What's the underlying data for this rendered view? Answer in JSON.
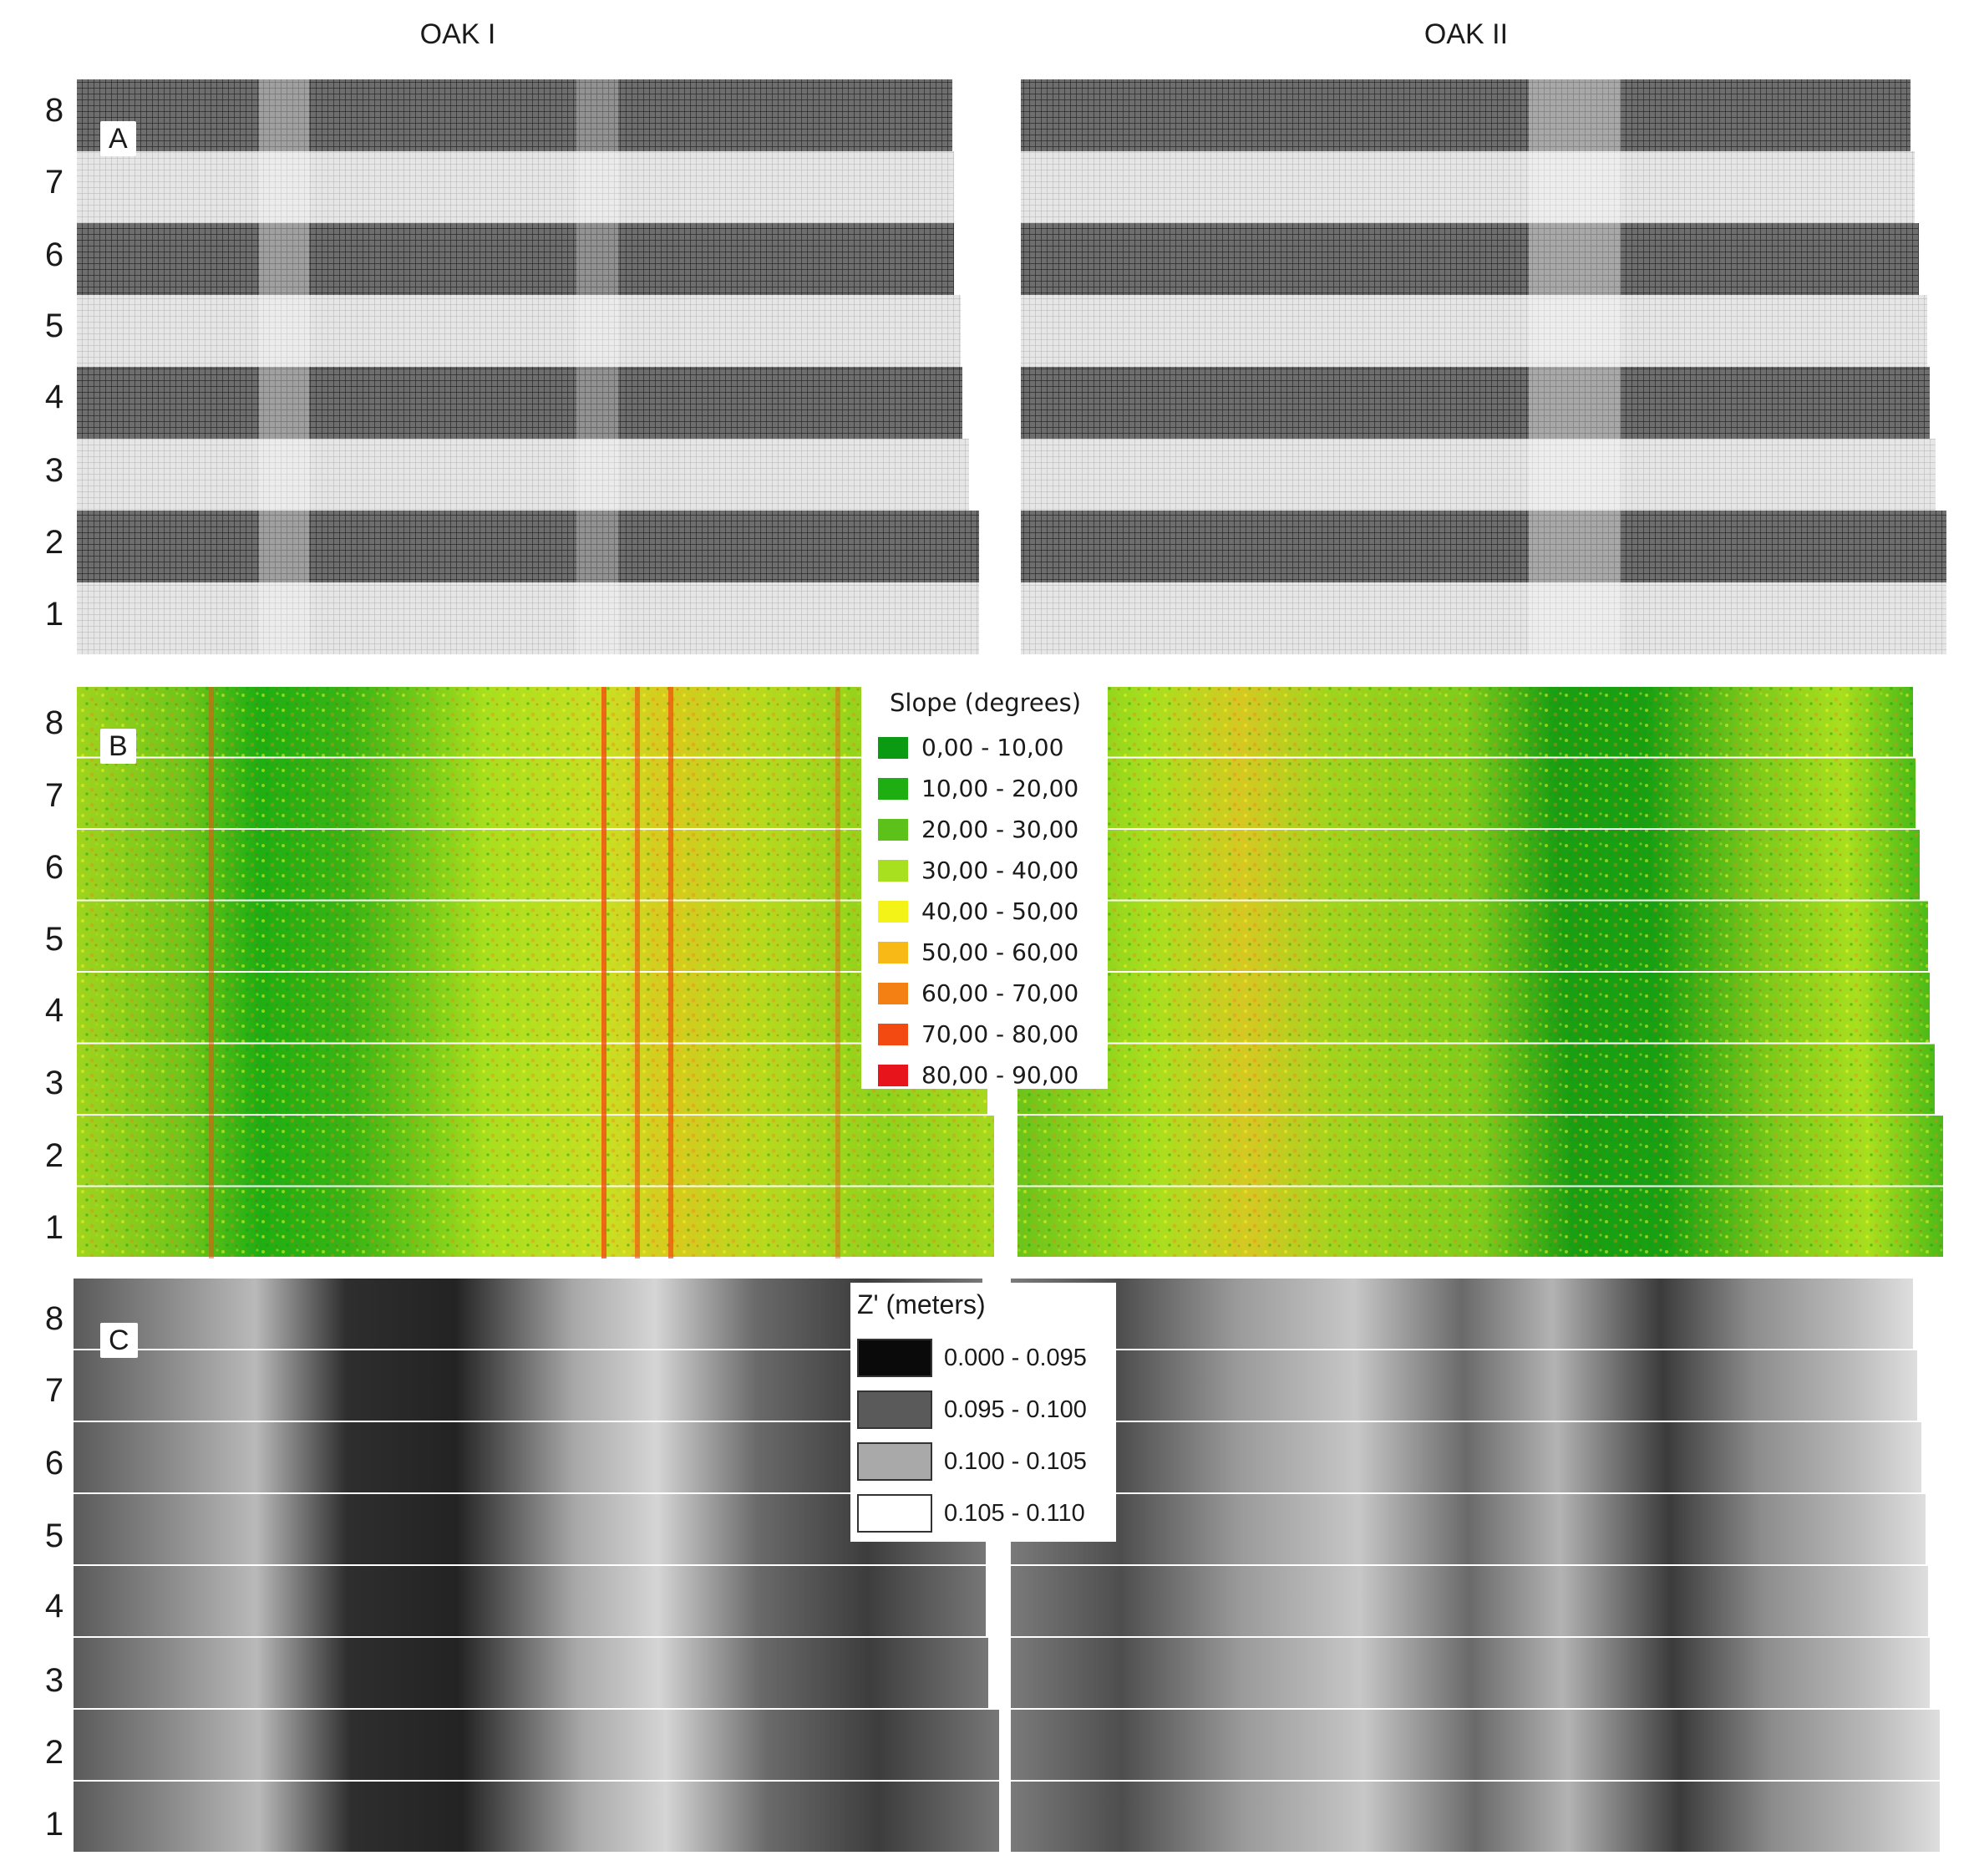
{
  "columns": [
    "OAK I",
    "OAK II"
  ],
  "row_numbers": [
    "8",
    "7",
    "6",
    "5",
    "4",
    "3",
    "2",
    "1"
  ],
  "panels": [
    "A",
    "B",
    "C"
  ],
  "slope_legend": {
    "title": "Slope (degrees)",
    "items": [
      {
        "label": "0,00 - 10,00",
        "color": "#0a9b12"
      },
      {
        "label": "10,00 - 20,00",
        "color": "#1fae12"
      },
      {
        "label": "20,00 - 30,00",
        "color": "#5cc21a"
      },
      {
        "label": "30,00 - 40,00",
        "color": "#a8df1e"
      },
      {
        "label": "40,00 - 50,00",
        "color": "#f3f318"
      },
      {
        "label": "50,00 - 60,00",
        "color": "#f8b815"
      },
      {
        "label": "60,00 - 70,00",
        "color": "#f47f13"
      },
      {
        "label": "70,00 - 80,00",
        "color": "#f24a10"
      },
      {
        "label": "80,00 - 90,00",
        "color": "#e8141b"
      }
    ]
  },
  "z_legend": {
    "title": "Z' (meters)",
    "items": [
      {
        "label": "0.000 - 0.095",
        "color": "#0a0a0a"
      },
      {
        "label": "0.095 - 0.100",
        "color": "#5a5a5a"
      },
      {
        "label": "0.100 - 0.105",
        "color": "#a9a9a9"
      },
      {
        "label": "0.105 - 0.110",
        "color": "#ffffff"
      }
    ]
  }
}
